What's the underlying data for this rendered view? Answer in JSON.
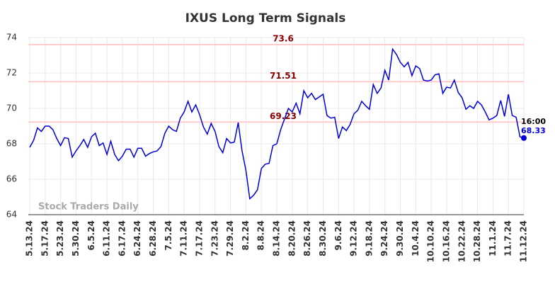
{
  "chart_data": {
    "type": "line",
    "title": "IXUS Long Term Signals",
    "watermark": "Stock Traders Daily",
    "categories": [
      "5.13.24",
      null,
      null,
      null,
      "5.17.24",
      null,
      null,
      null,
      "5.23.24",
      null,
      null,
      null,
      "5.30.24",
      null,
      null,
      null,
      "6.5.24",
      null,
      null,
      null,
      "6.11.24",
      null,
      null,
      null,
      "6.17.24",
      null,
      null,
      null,
      "6.24.24",
      null,
      null,
      null,
      "6.28.24",
      null,
      null,
      null,
      "7.5.24",
      null,
      null,
      null,
      "7.11.24",
      null,
      null,
      null,
      "7.17.24",
      null,
      null,
      null,
      "7.23.24",
      null,
      null,
      null,
      "7.29.24",
      null,
      null,
      null,
      "8.2.24",
      null,
      null,
      null,
      "8.8.24",
      null,
      null,
      null,
      "8.14.24",
      null,
      null,
      null,
      "8.20.24",
      null,
      null,
      null,
      "8.26.24",
      null,
      null,
      null,
      "8.30.24",
      null,
      null,
      null,
      "9.6.24",
      null,
      null,
      null,
      "9.12.24",
      null,
      null,
      null,
      "9.18.24",
      null,
      null,
      null,
      "9.24.24",
      null,
      null,
      null,
      "9.30.24",
      null,
      null,
      null,
      "10.4.24",
      null,
      null,
      null,
      "10.10.24",
      null,
      null,
      null,
      "10.16.24",
      null,
      null,
      null,
      "10.22.24",
      null,
      null,
      null,
      "10.28.24",
      null,
      null,
      null,
      "11.1.24",
      null,
      null,
      null,
      "11.7.24",
      null,
      null,
      null,
      "11.12.24"
    ],
    "series": [
      {
        "name": "IXUS",
        "color": "#0000dd",
        "values": [
          67.8,
          68.2,
          68.9,
          68.7,
          69.0,
          69.0,
          68.8,
          68.3,
          67.9,
          68.35,
          68.3,
          67.25,
          67.6,
          67.9,
          68.25,
          67.8,
          68.4,
          68.6,
          67.9,
          68.05,
          67.4,
          68.15,
          67.4,
          67.05,
          67.3,
          67.7,
          67.7,
          67.25,
          67.75,
          67.75,
          67.3,
          67.45,
          67.55,
          67.6,
          67.85,
          68.6,
          69.0,
          68.8,
          68.7,
          69.45,
          69.8,
          70.4,
          69.8,
          70.2,
          69.65,
          68.95,
          68.55,
          69.15,
          68.7,
          67.85,
          67.5,
          68.3,
          68.05,
          68.1,
          69.2,
          67.6,
          66.5,
          64.9,
          65.1,
          65.4,
          66.6,
          66.85,
          66.9,
          67.9,
          68.0,
          68.8,
          69.4,
          70.0,
          69.8,
          70.3,
          69.7,
          71.0,
          70.6,
          70.85,
          70.5,
          70.65,
          70.8,
          69.6,
          69.45,
          69.5,
          68.3,
          68.95,
          68.75,
          69.1,
          69.7,
          69.9,
          70.4,
          70.15,
          69.95,
          71.35,
          70.85,
          71.15,
          72.15,
          71.6,
          73.35,
          73.05,
          72.6,
          72.35,
          72.6,
          71.85,
          72.4,
          72.25,
          71.6,
          71.55,
          71.6,
          71.9,
          71.95,
          70.85,
          71.2,
          71.15,
          71.6,
          70.9,
          70.6,
          69.95,
          70.15,
          70.0,
          70.4,
          70.2,
          69.8,
          69.35,
          69.45,
          69.6,
          70.45,
          69.55,
          70.8,
          69.6,
          69.5,
          68.4,
          68.33
        ]
      }
    ],
    "last_time": "16:00",
    "hlines": [
      {
        "value": 73.6,
        "label": "73.6"
      },
      {
        "value": 71.51,
        "label": "71.51"
      },
      {
        "value": 69.23,
        "label": "69.23"
      }
    ],
    "hline_color": "#ffcccc",
    "hline_label_color": "#8b0000",
    "ylim": [
      64,
      74
    ],
    "yticks": [
      64,
      66,
      68,
      70,
      72,
      74
    ],
    "grid": true
  }
}
